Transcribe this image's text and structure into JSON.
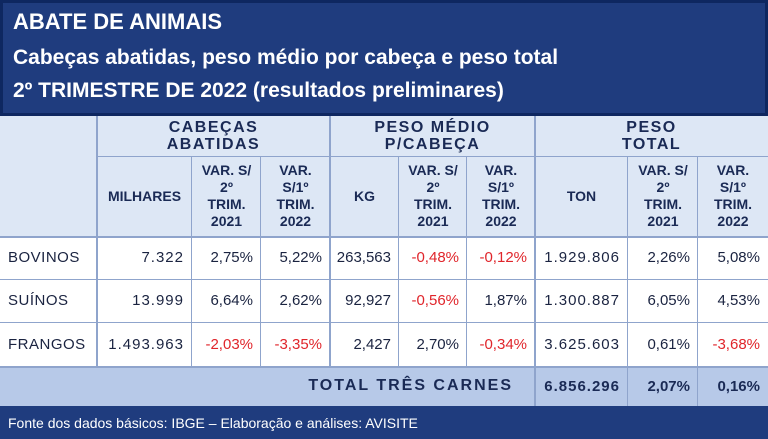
{
  "header": {
    "title": "ABATE DE ANIMAIS",
    "subtitle": "Cabeças abatidas, peso médio por cabeça e peso total",
    "period": "2º TRIMESTRE DE 2022 (resultados preliminares)"
  },
  "sections": {
    "cabecas": "CABEÇAS ABATIDAS",
    "peso_medio": "PESO MÉDIO P/CABEÇA",
    "peso_total": "PESO TOTAL"
  },
  "columns": {
    "milhares": "MILHARES",
    "var_2t21": "VAR. S/ 2º TRIM. 2021",
    "var_1t22": "VAR. S/1º TRIM. 2022",
    "kg": "KG",
    "ton": "TON"
  },
  "rows": [
    {
      "label": "BOVINOS",
      "milhares": "7.322",
      "c_var1": "2,75%",
      "c_var2": "5,22%",
      "kg": "263,563",
      "k_var1": "-0,48%",
      "k_var2": "-0,12%",
      "ton": "1.929.806",
      "t_var1": "2,26%",
      "t_var2": "5,08%"
    },
    {
      "label": "SUÍNOS",
      "milhares": "13.999",
      "c_var1": "6,64%",
      "c_var2": "2,62%",
      "kg": "92,927",
      "k_var1": "-0,56%",
      "k_var2": "1,87%",
      "ton": "1.300.887",
      "t_var1": "6,05%",
      "t_var2": "4,53%"
    },
    {
      "label": "FRANGOS",
      "milhares": "1.493.963",
      "c_var1": "-2,03%",
      "c_var2": "-3,35%",
      "kg": "2,427",
      "k_var1": "2,70%",
      "k_var2": "-0,34%",
      "ton": "3.625.603",
      "t_var1": "0,61%",
      "t_var2": "-3,68%"
    }
  ],
  "total": {
    "label": "TOTAL TRÊS CARNES",
    "ton": "6.856.296",
    "var1": "2,07%",
    "var2": "0,16%"
  },
  "footer": "Fonte dos dados básicos: IBGE – Elaboração e análises: AVISITE",
  "colors": {
    "header_bg": "#1f3c7e",
    "negative": "#e0252b",
    "total_bg": "#b7c9e8",
    "header_cell_bg": "#dde7f5"
  }
}
